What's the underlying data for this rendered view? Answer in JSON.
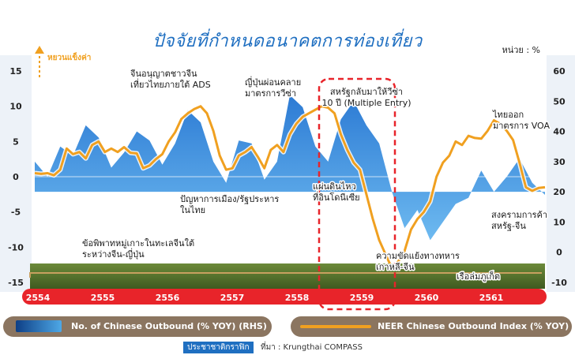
{
  "title": "ปัจจัยที่กำหนดอนาคตการท่องเที่ยว",
  "unit_label": "หน่วย : %",
  "left_axis_note": "หยวนแข็งค่า",
  "legend": {
    "rhs": "No. of Chinese Outbound (% YOY) (RHS)",
    "lhs": "NEER Chinese Outbound Index (% YOY)"
  },
  "footer": {
    "brand": "ประชาชาติกราฟิก",
    "source": "ที่มา : Krungthai COMPASS"
  },
  "annotations": [
    "จีนอนุญาตชาวจีน\nเที่ยวไทยภายใต้ ADS",
    "ญี่ปุ่นผ่อนคลาย\nมาตรการวีซ่า",
    "สหรัฐกลับมาให้วีซ่า\n10 ปี (Multiple Entry)",
    "ไทยออก\nมาตรการ VOA",
    "ปัญหาการเมือง/รัฐประหาร\nในไทย",
    "แผ่นดินไหว\nที่อินโดนีเซีย",
    "สงครามการค้า\nสหรัฐ-จีน",
    "ข้อพิพาทหมู่เกาะในทะเลจีนใต้\nระหว่างจีน-ญี่ปุ่น",
    "ความขัดแย้งทางทหาร\nเกาหลี-จีน",
    "เรือล่มภูเก็ต"
  ],
  "colors": {
    "line": "#f0a020",
    "area": "#1c7fd4",
    "year_bar": "#e8242a",
    "title": "#1f6fc1"
  },
  "chart_data": {
    "type": "line",
    "x_categories": [
      "2554",
      "2555",
      "2556",
      "2557",
      "2558",
      "2559",
      "2560",
      "2561"
    ],
    "y_left": {
      "range": [
        -15,
        15
      ],
      "ticks": [
        "15",
        "10",
        "5",
        "0",
        "-5",
        "-10",
        "-15"
      ]
    },
    "y_right": {
      "range": [
        -10,
        60
      ],
      "ticks": [
        "60",
        "50",
        "40",
        "30",
        "20",
        "10",
        "0",
        "-10"
      ]
    },
    "series": [
      {
        "name": "No. of Chinese Outbound (% YOY) (RHS)",
        "type": "area",
        "axis": "right",
        "points": [
          [
            0,
            30
          ],
          [
            0.2,
            25
          ],
          [
            0.4,
            35
          ],
          [
            0.6,
            32
          ],
          [
            0.8,
            42
          ],
          [
            1.0,
            38
          ],
          [
            1.2,
            28
          ],
          [
            1.4,
            33
          ],
          [
            1.6,
            40
          ],
          [
            1.8,
            37
          ],
          [
            2.0,
            29
          ],
          [
            2.2,
            36
          ],
          [
            2.4,
            47
          ],
          [
            2.6,
            43
          ],
          [
            2.8,
            30
          ],
          [
            3.0,
            23
          ],
          [
            3.2,
            37
          ],
          [
            3.4,
            36
          ],
          [
            3.6,
            24
          ],
          [
            3.8,
            30
          ],
          [
            4.0,
            52
          ],
          [
            4.2,
            48
          ],
          [
            4.4,
            35
          ],
          [
            4.6,
            30
          ],
          [
            4.8,
            44
          ],
          [
            5.0,
            50
          ],
          [
            5.2,
            42
          ],
          [
            5.4,
            36
          ],
          [
            5.6,
            20
          ],
          [
            5.8,
            8
          ],
          [
            6.0,
            14
          ],
          [
            6.2,
            4
          ],
          [
            6.4,
            10
          ],
          [
            6.6,
            16
          ],
          [
            6.8,
            18
          ],
          [
            7.0,
            27
          ],
          [
            7.2,
            20
          ],
          [
            7.4,
            25
          ],
          [
            7.6,
            31
          ],
          [
            7.8,
            23
          ],
          [
            8.0,
            19
          ]
        ]
      },
      {
        "name": "NEER Chinese Outbound Index (% YOY)",
        "type": "line",
        "axis": "left",
        "points": [
          [
            0,
            0.5
          ],
          [
            0.1,
            0.4
          ],
          [
            0.2,
            0.5
          ],
          [
            0.3,
            0.2
          ],
          [
            0.4,
            1
          ],
          [
            0.5,
            4
          ],
          [
            0.6,
            3.2
          ],
          [
            0.7,
            3.5
          ],
          [
            0.8,
            2.6
          ],
          [
            0.9,
            4.5
          ],
          [
            1.0,
            5
          ],
          [
            1.1,
            3.5
          ],
          [
            1.2,
            4
          ],
          [
            1.3,
            3.5
          ],
          [
            1.4,
            4.2
          ],
          [
            1.5,
            3.4
          ],
          [
            1.6,
            3.3
          ],
          [
            1.7,
            1.2
          ],
          [
            1.8,
            1.6
          ],
          [
            1.9,
            2.5
          ],
          [
            2.0,
            3.2
          ],
          [
            2.1,
            5
          ],
          [
            2.2,
            6.3
          ],
          [
            2.3,
            8.2
          ],
          [
            2.4,
            9
          ],
          [
            2.5,
            9.6
          ],
          [
            2.6,
            10
          ],
          [
            2.7,
            9
          ],
          [
            2.8,
            6.5
          ],
          [
            2.9,
            3
          ],
          [
            3.0,
            1
          ],
          [
            3.1,
            1.2
          ],
          [
            3.2,
            3
          ],
          [
            3.3,
            3.5
          ],
          [
            3.4,
            4.2
          ],
          [
            3.5,
            2.8
          ],
          [
            3.6,
            1.2
          ],
          [
            3.7,
            3.8
          ],
          [
            3.8,
            4.5
          ],
          [
            3.9,
            3.5
          ],
          [
            4.0,
            6
          ],
          [
            4.1,
            7.5
          ],
          [
            4.2,
            8.5
          ],
          [
            4.3,
            9
          ],
          [
            4.4,
            9.5
          ],
          [
            4.5,
            10
          ],
          [
            4.6,
            9.8
          ],
          [
            4.7,
            9
          ],
          [
            4.8,
            6
          ],
          [
            4.9,
            3.8
          ],
          [
            5.0,
            2
          ],
          [
            5.1,
            1
          ],
          [
            5.2,
            -2.5
          ],
          [
            5.3,
            -6
          ],
          [
            5.4,
            -9
          ],
          [
            5.5,
            -11
          ],
          [
            5.6,
            -13
          ],
          [
            5.7,
            -12
          ],
          [
            5.8,
            -10.5
          ],
          [
            5.9,
            -7.5
          ],
          [
            6.0,
            -6
          ],
          [
            6.1,
            -5
          ],
          [
            6.2,
            -3.5
          ],
          [
            6.3,
            0
          ],
          [
            6.4,
            2
          ],
          [
            6.5,
            3
          ],
          [
            6.6,
            5
          ],
          [
            6.7,
            4.5
          ],
          [
            6.8,
            5.8
          ],
          [
            6.9,
            5.5
          ],
          [
            7.0,
            5.4
          ],
          [
            7.1,
            6.5
          ],
          [
            7.2,
            8
          ],
          [
            7.3,
            7.5
          ],
          [
            7.4,
            6.5
          ],
          [
            7.5,
            5.2
          ],
          [
            7.6,
            2
          ],
          [
            7.7,
            -1.5
          ],
          [
            7.8,
            -2
          ],
          [
            7.9,
            -1.6
          ],
          [
            8.0,
            -1.5
          ]
        ]
      }
    ]
  }
}
